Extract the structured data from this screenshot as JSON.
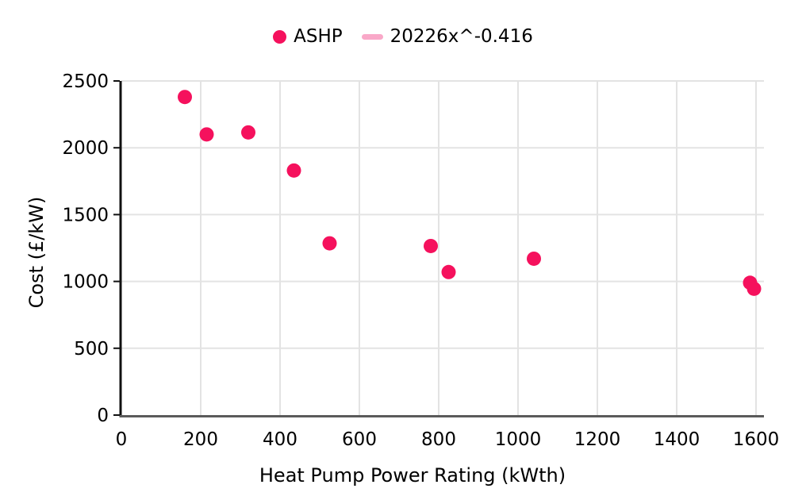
{
  "legend": {
    "items": [
      {
        "label": "ASHP",
        "marker": "dot",
        "color": "#F5115D"
      },
      {
        "label": "20226x^-0.416",
        "marker": "line",
        "color": "#F9A8C8"
      }
    ]
  },
  "colors": {
    "grid": "#E3E3E3",
    "y_axis": "#111111",
    "x_axis": "#5A5A5A",
    "tick": "#111111",
    "text": "#000000",
    "background": "#ffffff"
  },
  "chart_data": {
    "type": "scatter",
    "title": "",
    "xlabel": "Heat Pump Power Rating (kWth)",
    "ylabel": "Cost (£/kW)",
    "xlim": [
      0,
      1620
    ],
    "ylim": [
      0,
      2500
    ],
    "x_ticks": [
      0,
      200,
      400,
      600,
      800,
      1000,
      1200,
      1400,
      1600
    ],
    "y_ticks": [
      0,
      500,
      1000,
      1500,
      2000,
      2500
    ],
    "grid": true,
    "legend_position": "top-center",
    "series": [
      {
        "name": "ASHP",
        "type": "scatter",
        "color": "#F5115D",
        "marker_radius": 9,
        "points": [
          {
            "x": 160,
            "y": 2380
          },
          {
            "x": 215,
            "y": 2100
          },
          {
            "x": 320,
            "y": 2115
          },
          {
            "x": 435,
            "y": 1830
          },
          {
            "x": 525,
            "y": 1285
          },
          {
            "x": 780,
            "y": 1265
          },
          {
            "x": 825,
            "y": 1070
          },
          {
            "x": 1040,
            "y": 1170
          },
          {
            "x": 1585,
            "y": 990
          },
          {
            "x": 1595,
            "y": 945
          }
        ]
      },
      {
        "name": "20226x^-0.416",
        "type": "trendline",
        "color": "#F9A8C8",
        "equation": "20226x^-0.416",
        "coefficient": 20226,
        "exponent": -0.416,
        "drawn_in_plot": false
      }
    ]
  }
}
